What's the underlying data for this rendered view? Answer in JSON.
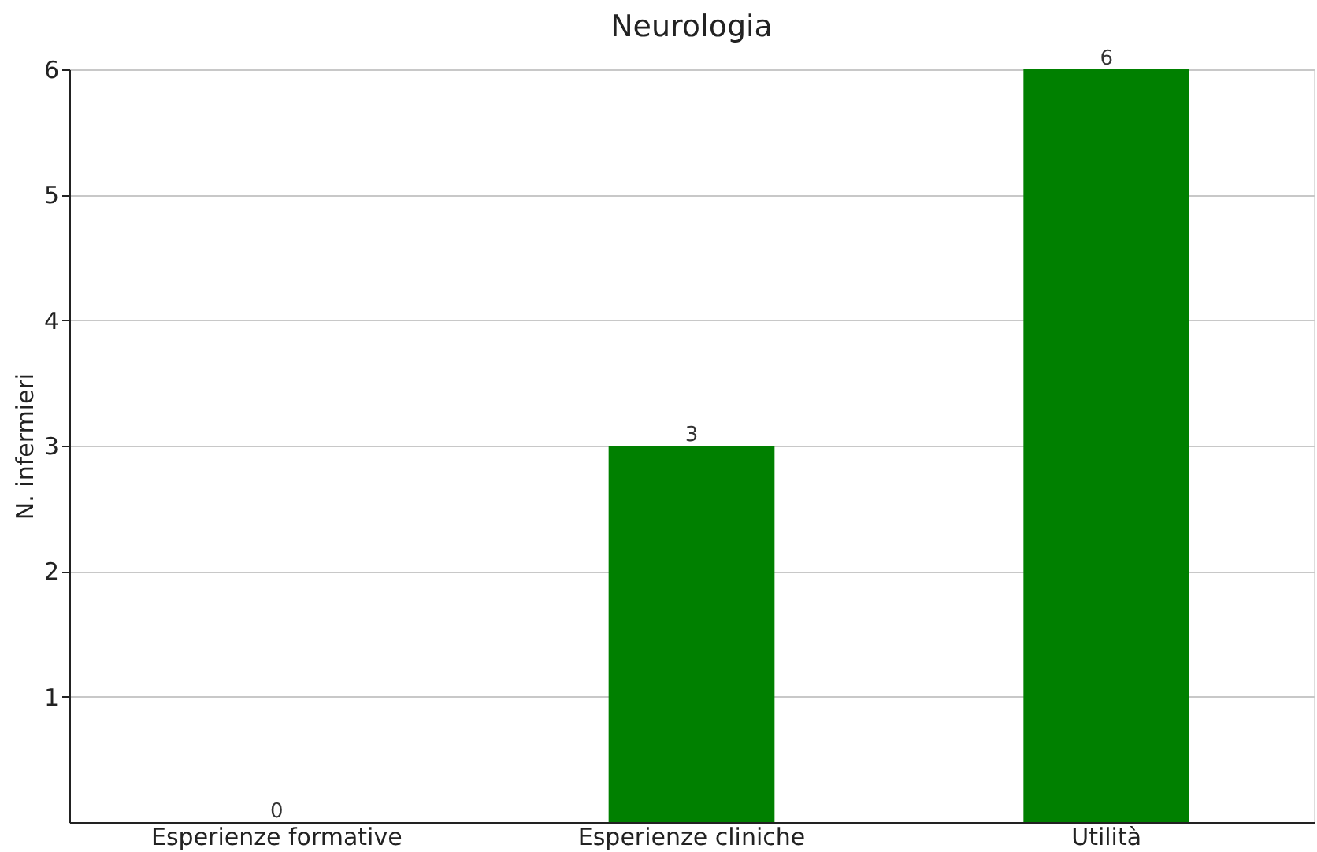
{
  "chart_data": {
    "type": "bar",
    "title": "Neurologia",
    "ylabel": "N. infermieri",
    "categories": [
      "Esperienze formative",
      "Esperienze cliniche",
      "Utilità"
    ],
    "values": [
      0,
      3,
      6
    ],
    "color": "#008000",
    "ylim": [
      0,
      6
    ],
    "yticks": [
      1,
      2,
      3,
      4,
      5,
      6
    ],
    "grid": "y",
    "data_labels": true
  }
}
